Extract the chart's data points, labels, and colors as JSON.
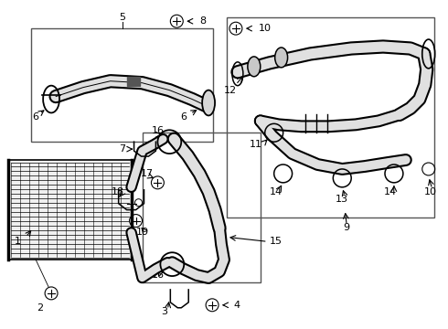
{
  "bg_color": "#ffffff",
  "line_color": "#000000",
  "box_color": "#555555"
}
